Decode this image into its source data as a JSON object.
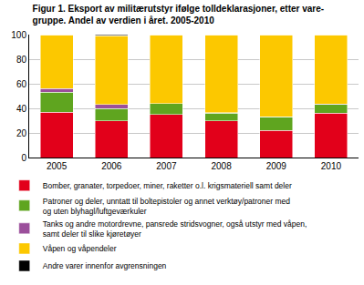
{
  "chart_data": {
    "type": "bar",
    "stacked": true,
    "grid": true,
    "legend": "bottom",
    "title": "Figur 1. Eksport av militærutstyr ifølge tolldeklarasjoner, etter vare- gruppe. Andel av verdien i året. 2005-2010",
    "categories": [
      "2005",
      "2006",
      "2007",
      "2008",
      "2009",
      "2010"
    ],
    "ylim": [
      0,
      100
    ],
    "yticks": [
      0,
      20,
      40,
      60,
      80,
      100
    ],
    "series": [
      {
        "name": "Bomber, granater, torpedoer, miner, raketter o.l. krigsmateriell samt deler",
        "color": "#e2001a",
        "values": [
          37,
          30,
          35,
          30,
          22,
          36
        ]
      },
      {
        "name": "Patroner og deler, unntatt til boltepistoler og annet verktøy/patroner med og uten blyhagl/luftgeværkuler",
        "color": "#5fa51f",
        "values": [
          16,
          10,
          9,
          6,
          11,
          7
        ]
      },
      {
        "name": "Tanks og andre motordrevne, pansrede stridsvogner, også utstyr med våpen, samt deler til slike kjøretøyer",
        "color": "#9b4f9b",
        "values": [
          3,
          3,
          0,
          0.5,
          0,
          0.5
        ]
      },
      {
        "name": "Våpen og våpendeler",
        "color": "#fcc800",
        "values": [
          44,
          56,
          56,
          63.5,
          66.7,
          56.5
        ]
      },
      {
        "name": "Andre varer innenfor avgrensningen",
        "color": "#000000",
        "values": [
          0,
          1,
          0,
          0,
          0.3,
          0
        ]
      }
    ]
  }
}
